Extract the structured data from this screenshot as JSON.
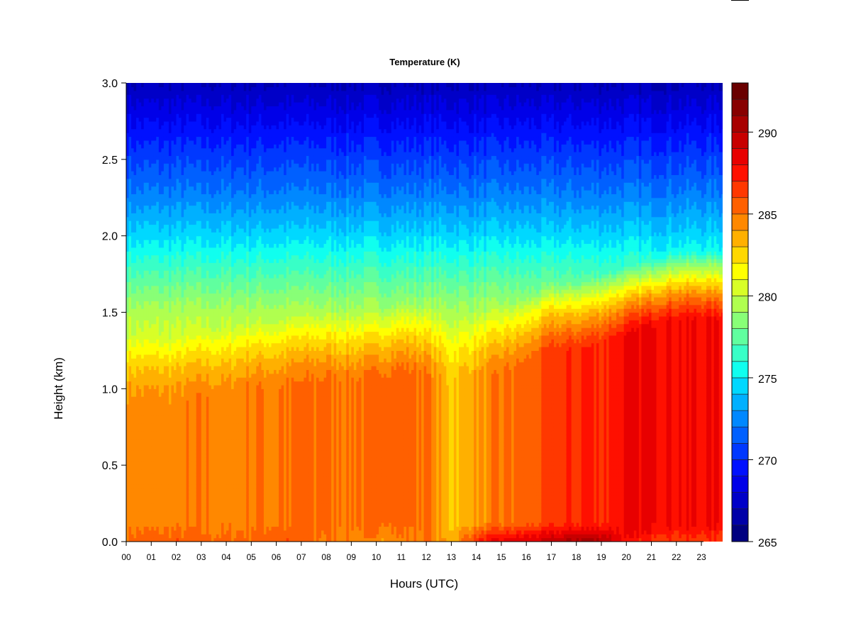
{
  "chart_data": {
    "type": "heatmap",
    "title": "Temperature (K)",
    "xlabel": "Hours (UTC)",
    "ylabel": "Height (km)",
    "x_tick_labels": [
      "00",
      "01",
      "02",
      "03",
      "04",
      "05",
      "06",
      "07",
      "08",
      "09",
      "10",
      "11",
      "12",
      "13",
      "14",
      "15",
      "16",
      "17",
      "18",
      "19",
      "20",
      "21",
      "22",
      "23"
    ],
    "y_tick_labels": [
      "0.0",
      "0.5",
      "1.0",
      "1.5",
      "2.0",
      "2.5",
      "3.0"
    ],
    "xlim": [
      0,
      23.85
    ],
    "ylim": [
      0.0,
      3.0
    ],
    "y_ticks": [
      0.0,
      0.5,
      1.0,
      1.5,
      2.0,
      2.5,
      3.0
    ],
    "colorbar": {
      "range": [
        265,
        293
      ],
      "step": 1,
      "ticks": [
        265,
        270,
        275,
        280,
        285,
        290
      ],
      "tick_labels": [
        "265",
        "270",
        "275",
        "280",
        "285",
        "290"
      ],
      "colors": [
        "#000080",
        "#0000a8",
        "#0000c8",
        "#0000e8",
        "#0010ff",
        "#0038ff",
        "#0060ff",
        "#0088ff",
        "#00b0ff",
        "#00d8ff",
        "#10ffef",
        "#38ffc7",
        "#60ff9f",
        "#88ff77",
        "#b0ff4f",
        "#d8ff27",
        "#ffff00",
        "#ffd800",
        "#ffb000",
        "#ff8800",
        "#ff6000",
        "#ff3800",
        "#ff1000",
        "#e80000",
        "#c80000",
        "#a80000",
        "#880000",
        "#6a0000"
      ]
    },
    "surface_temperature_by_hour": [
      285.5,
      285.8,
      285.8,
      285.5,
      285.3,
      285.5,
      285.8,
      285.5,
      285.0,
      284.5,
      284.3,
      284.5,
      285.0,
      283.5,
      287.0,
      288.5,
      289.0,
      289.5,
      290.5,
      290.5,
      287.5,
      287.0,
      286.5,
      286.5
    ],
    "boundary_layer_temperature_by_hour": [
      284.5,
      284.5,
      284.5,
      284.8,
      284.5,
      285.0,
      285.0,
      285.0,
      285.3,
      285.0,
      285.5,
      285.5,
      285.0,
      283.0,
      284.0,
      285.0,
      285.5,
      286.5,
      287.0,
      287.0,
      288.0,
      288.5,
      288.0,
      288.0
    ],
    "layer_depth_km_by_hour": [
      0.9,
      0.9,
      0.9,
      0.95,
      0.95,
      1.0,
      1.0,
      1.05,
      1.05,
      1.05,
      1.05,
      1.1,
      1.1,
      1.0,
      1.05,
      1.1,
      1.15,
      1.25,
      1.25,
      1.3,
      1.35,
      1.4,
      1.45,
      1.45
    ],
    "upper_level_profile": [
      {
        "height_km": 1.0,
        "temperature_K": 282
      },
      {
        "height_km": 1.5,
        "temperature_K": 279.5
      },
      {
        "height_km": 1.8,
        "temperature_K": 276.5
      },
      {
        "height_km": 2.0,
        "temperature_K": 274.5
      },
      {
        "height_km": 2.3,
        "temperature_K": 272
      },
      {
        "height_km": 2.6,
        "temperature_K": 270
      },
      {
        "height_km": 2.8,
        "temperature_K": 268.5
      },
      {
        "height_km": 3.0,
        "temperature_K": 267
      }
    ],
    "grid": false
  }
}
